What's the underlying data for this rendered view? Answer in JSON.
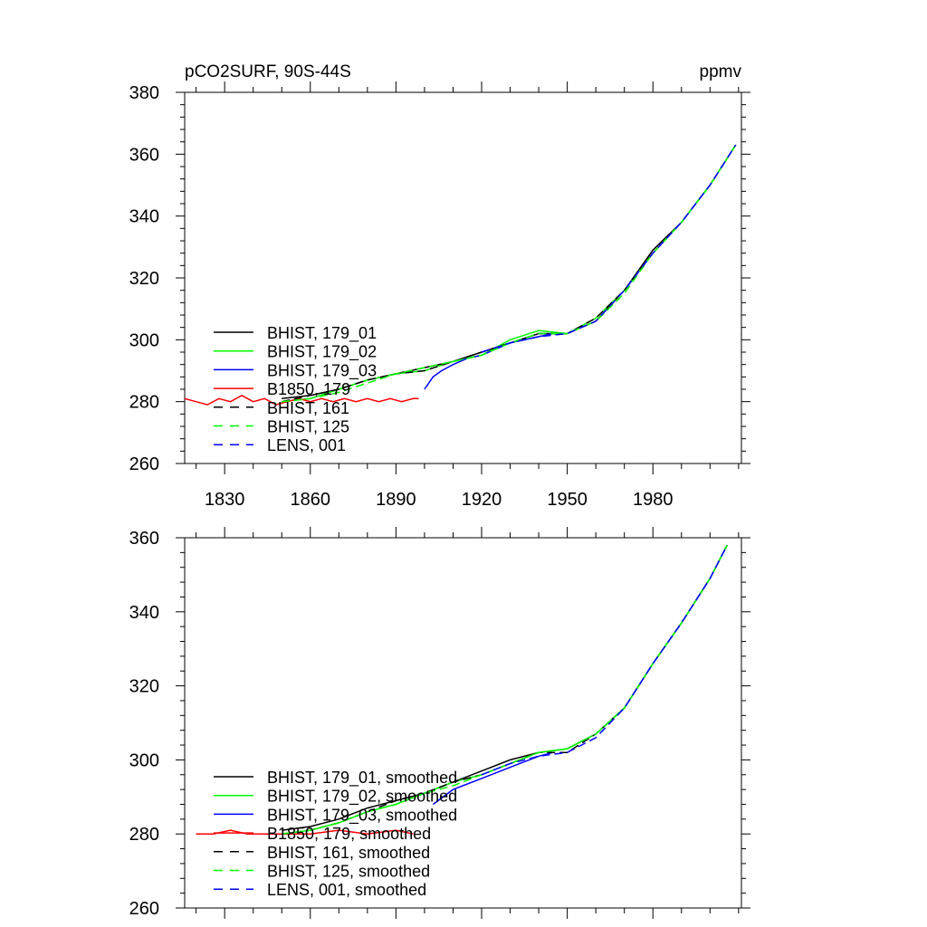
{
  "chart_data": [
    {
      "type": "line",
      "title_left": "pCO2SURF, 90S-44S",
      "title_right": "ppmv",
      "xlim": [
        1816,
        2011
      ],
      "ylim": [
        260,
        380
      ],
      "yticks": [
        260,
        280,
        300,
        320,
        340,
        360,
        380
      ],
      "xticks": [
        1830,
        1860,
        1890,
        1920,
        1950,
        1980
      ],
      "show_xtick_labels": true,
      "legend_position": "bottom-left",
      "series": [
        {
          "name": "BHIST, 179_01",
          "color": "#000000",
          "dash": false,
          "x": [
            1850,
            1860,
            1870,
            1880,
            1890,
            1900,
            1910,
            1920,
            1930,
            1940,
            1950,
            1960,
            1970,
            1980,
            1990,
            2000,
            2009
          ],
          "y": [
            281,
            282,
            284,
            287,
            289,
            291,
            293,
            296,
            299,
            302,
            302,
            306,
            316,
            329,
            338,
            350,
            363
          ]
        },
        {
          "name": "BHIST, 179_02",
          "color": "#00ff00",
          "dash": false,
          "x": [
            1850,
            1860,
            1870,
            1880,
            1890,
            1900,
            1910,
            1920,
            1930,
            1940,
            1950,
            1960,
            1970,
            1980,
            1990,
            2000,
            2009
          ],
          "y": [
            280,
            281,
            284,
            287,
            289,
            290,
            293,
            295,
            300,
            303,
            302,
            307,
            316,
            328,
            338,
            350,
            363
          ]
        },
        {
          "name": "BHIST, 179_03",
          "color": "#0000ff",
          "dash": false,
          "x": [
            1900,
            1903,
            1906,
            1910,
            1915,
            1920,
            1925,
            1930,
            1935,
            1940,
            1945
          ],
          "y": [
            284,
            288,
            290,
            292,
            294,
            295,
            297,
            299,
            300,
            301,
            302
          ]
        },
        {
          "name": "B1850, 179",
          "color": "#ff0000",
          "dash": false,
          "x": [
            1816,
            1820,
            1824,
            1828,
            1832,
            1836,
            1840,
            1844,
            1848,
            1852,
            1856,
            1860,
            1864,
            1868,
            1872,
            1876,
            1880,
            1884,
            1888,
            1892,
            1896,
            1898
          ],
          "y": [
            281,
            280,
            279,
            281,
            280,
            282,
            280,
            281,
            279,
            280,
            281,
            280,
            281,
            280,
            281,
            280,
            281,
            280,
            281,
            280,
            281,
            281
          ]
        },
        {
          "name": "BHIST, 161",
          "color": "#000000",
          "dash": true,
          "x": [
            1850,
            1860,
            1870,
            1880,
            1890,
            1900,
            1910,
            1920,
            1930,
            1940,
            1950,
            1960,
            1970,
            1980,
            1990,
            2000,
            2009
          ],
          "y": [
            280,
            282,
            284,
            287,
            289,
            290,
            293,
            296,
            299,
            302,
            302,
            307,
            316,
            328,
            338,
            350,
            363
          ]
        },
        {
          "name": "BHIST, 125",
          "color": "#00ff00",
          "dash": true,
          "x": [
            1850,
            1860,
            1870,
            1880,
            1890,
            1900,
            1910,
            1920,
            1930,
            1940,
            1950,
            1960,
            1970,
            1980,
            1990,
            2000,
            2009
          ],
          "y": [
            280,
            281,
            283,
            286,
            289,
            291,
            293,
            295,
            299,
            302,
            302,
            306,
            315,
            328,
            338,
            350,
            363
          ]
        },
        {
          "name": "LENS, 001",
          "color": "#0000ff",
          "dash": true,
          "x": [
            1920,
            1930,
            1940,
            1950,
            1960,
            1970,
            1980,
            1990,
            2000,
            2009
          ],
          "y": [
            296,
            299,
            301,
            302,
            306,
            316,
            328,
            338,
            350,
            363
          ]
        }
      ]
    },
    {
      "type": "line",
      "title_left": "",
      "title_right": "",
      "xlim": [
        1816,
        2011
      ],
      "ylim": [
        260,
        360
      ],
      "yticks": [
        260,
        280,
        300,
        320,
        340,
        360
      ],
      "xticks": [
        1830,
        1860,
        1890,
        1920,
        1950,
        1980
      ],
      "show_xtick_labels": false,
      "legend_position": "bottom-left",
      "series": [
        {
          "name": "BHIST, 179_01, smoothed",
          "color": "#000000",
          "dash": false,
          "x": [
            1850,
            1860,
            1870,
            1880,
            1890,
            1900,
            1910,
            1920,
            1930,
            1940,
            1950,
            1960,
            1970,
            1980,
            1990,
            2000,
            2006
          ],
          "y": [
            281,
            282,
            284,
            287,
            289,
            291,
            294,
            297,
            300,
            302,
            303,
            307,
            314,
            326,
            337,
            349,
            358
          ]
        },
        {
          "name": "BHIST, 179_02, smoothed",
          "color": "#00ff00",
          "dash": false,
          "x": [
            1850,
            1860,
            1870,
            1880,
            1890,
            1900,
            1910,
            1920,
            1930,
            1940,
            1950,
            1960,
            1970,
            1980,
            1990,
            2000,
            2006
          ],
          "y": [
            280,
            281,
            283,
            286,
            288,
            291,
            294,
            296,
            299,
            302,
            303,
            307,
            314,
            326,
            337,
            349,
            358
          ]
        },
        {
          "name": "BHIST, 179_03, smoothed",
          "color": "#0000ff",
          "dash": false,
          "x": [
            1903,
            1910,
            1920,
            1930,
            1940,
            1945
          ],
          "y": [
            288,
            292,
            295,
            298,
            301,
            302
          ]
        },
        {
          "name": "B1850, 179, smoothed",
          "color": "#ff0000",
          "dash": false,
          "x": [
            1820,
            1826,
            1832,
            1838,
            1844,
            1850,
            1860,
            1870,
            1880,
            1890,
            1896
          ],
          "y": [
            280,
            280,
            281,
            280,
            280,
            280,
            280,
            281,
            280,
            281,
            280
          ]
        },
        {
          "name": "BHIST, 161, smoothed",
          "color": "#000000",
          "dash": true,
          "x": [
            1850,
            1860,
            1870,
            1880,
            1890,
            1900,
            1910,
            1920,
            1930,
            1940,
            1950,
            1960,
            1970,
            1980,
            1990,
            2000,
            2006
          ],
          "y": [
            280,
            281,
            283,
            286,
            289,
            291,
            294,
            296,
            299,
            302,
            302,
            307,
            314,
            326,
            337,
            349,
            358
          ]
        },
        {
          "name": "BHIST, 125, smoothed",
          "color": "#00ff00",
          "dash": true,
          "x": [
            1850,
            1860,
            1870,
            1880,
            1890,
            1900,
            1910,
            1920,
            1930,
            1940,
            1950,
            1960,
            1970,
            1980,
            1990,
            2000,
            2006
          ],
          "y": [
            280,
            281,
            283,
            286,
            288,
            291,
            293,
            296,
            299,
            302,
            303,
            307,
            314,
            326,
            337,
            349,
            358
          ]
        },
        {
          "name": "LENS, 001, smoothed",
          "color": "#0000ff",
          "dash": true,
          "x": [
            1920,
            1930,
            1940,
            1950,
            1960,
            1970,
            1980,
            1990,
            2000,
            2006
          ],
          "y": [
            296,
            299,
            301,
            302,
            306,
            314,
            326,
            337,
            349,
            358
          ]
        }
      ]
    }
  ]
}
